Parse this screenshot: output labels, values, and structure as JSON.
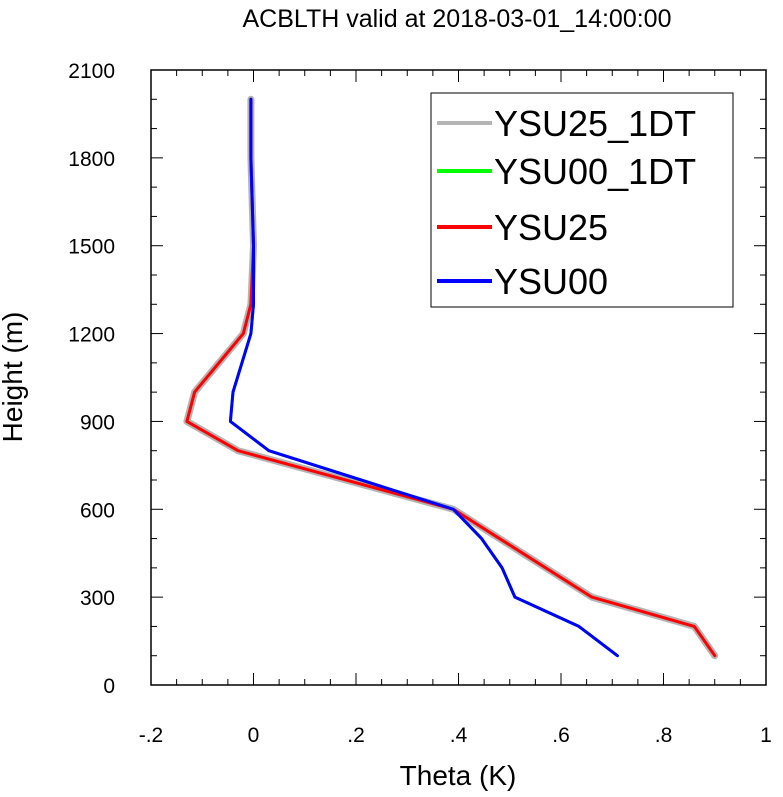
{
  "chart_data": {
    "type": "line",
    "title": "ACBLTH valid at 2018-03-01_14:00:00",
    "xlabel": "Theta (K)",
    "ylabel": "Height (m)",
    "xlim": [
      -0.2,
      1.0
    ],
    "ylim": [
      0,
      2100
    ],
    "x_ticks": [
      -0.2,
      0,
      0.2,
      0.4,
      0.6,
      0.8,
      1.0
    ],
    "x_tick_labels": [
      "-.2",
      "0",
      ".2",
      ".4",
      ".6",
      ".8",
      "1"
    ],
    "y_ticks": [
      0,
      300,
      600,
      900,
      1200,
      1500,
      1800,
      2100
    ],
    "y_tick_labels": [
      "0",
      "300",
      "600",
      "900",
      "1200",
      "1500",
      "1800",
      "2100"
    ],
    "grid": false,
    "legend_position": "top-right",
    "series": [
      {
        "name": "YSU25_1DT",
        "color": "#b4b4b4",
        "x": [
          0.9,
          0.86,
          0.66,
          0.39,
          -0.03,
          -0.13,
          -0.115,
          -0.02,
          -0.005,
          0.0,
          -0.005,
          -0.005
        ],
        "y": [
          100,
          200,
          300,
          600,
          800,
          900,
          1000,
          1200,
          1300,
          1500,
          1800,
          2000
        ]
      },
      {
        "name": "YSU00_1DT",
        "color": "#00ff00",
        "x": [
          0.71,
          0.635,
          0.51,
          0.485,
          0.445,
          0.39,
          0.03,
          -0.045,
          -0.04,
          -0.005,
          0.0,
          0.0,
          -0.005,
          -0.005
        ],
        "y": [
          100,
          200,
          300,
          400,
          500,
          600,
          800,
          900,
          1000,
          1200,
          1300,
          1500,
          1800,
          2000
        ]
      },
      {
        "name": "YSU25",
        "color": "#ff0000",
        "x": [
          0.9,
          0.86,
          0.66,
          0.39,
          -0.03,
          -0.13,
          -0.115,
          -0.02,
          -0.005,
          0.0,
          -0.005,
          -0.005
        ],
        "y": [
          100,
          200,
          300,
          600,
          800,
          900,
          1000,
          1200,
          1300,
          1500,
          1800,
          2000
        ]
      },
      {
        "name": "YSU00",
        "color": "#0000ff",
        "x": [
          0.71,
          0.635,
          0.51,
          0.485,
          0.445,
          0.39,
          0.03,
          -0.045,
          -0.04,
          -0.005,
          0.0,
          0.0,
          -0.005,
          -0.005
        ],
        "y": [
          100,
          200,
          300,
          400,
          500,
          600,
          800,
          900,
          1000,
          1200,
          1300,
          1500,
          1800,
          2000
        ]
      }
    ]
  }
}
